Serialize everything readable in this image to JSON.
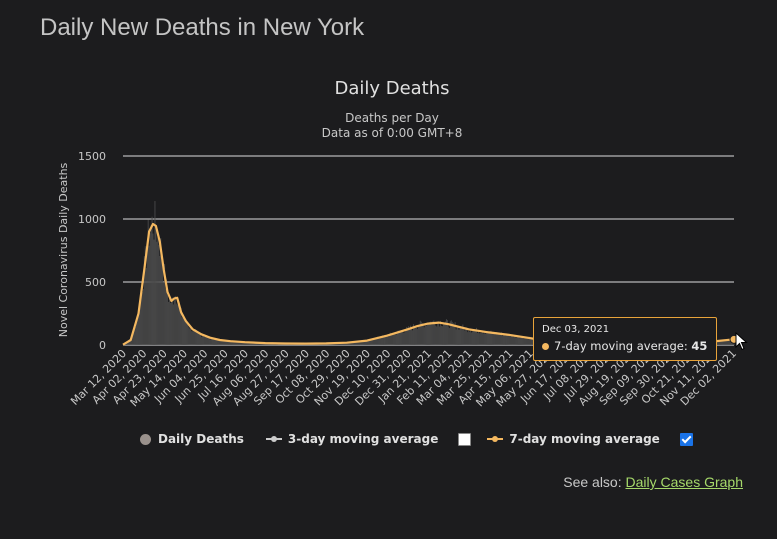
{
  "page": {
    "title": "Daily New Deaths in New York",
    "see_also_label": "See also:",
    "see_also_link": "Daily Cases Graph"
  },
  "legend": {
    "daily_deaths": "Daily Deaths",
    "ma3": "3-day moving average",
    "ma7": "7-day moving average",
    "ma3_checked": false,
    "ma7_checked": true
  },
  "tooltip": {
    "date": "Dec 03, 2021",
    "label": "7-day moving average:",
    "value": "45"
  },
  "colors": {
    "bars": "#4a4a4a",
    "ma7": "#f4b860",
    "ma3": "#cccccc",
    "grid": "#ffffff",
    "link": "#a6d96a",
    "checkbox": "#1a73e8"
  },
  "chart_data": {
    "type": "line",
    "title": "Daily Deaths",
    "subtitle": [
      "Deaths per Day",
      "Data as of 0:00 GMT+8"
    ],
    "ylabel": "Novel Coronavirus Daily Deaths",
    "ylim": [
      0,
      1500
    ],
    "yticks": [
      0,
      500,
      1000,
      1500
    ],
    "grid": true,
    "legend_position": "bottom",
    "x_start": "2020-03-12",
    "x_end": "2021-12-03",
    "xticks": [
      "Mar 12, 2020",
      "Apr 02, 2020",
      "Apr 23, 2020",
      "May 14, 2020",
      "Jun 04, 2020",
      "Jun 25, 2020",
      "Jul 16, 2020",
      "Aug 06, 2020",
      "Aug 27, 2020",
      "Sep 17, 2020",
      "Oct 08, 2020",
      "Oct 29, 2020",
      "Nov 19, 2020",
      "Dec 10, 2020",
      "Dec 31, 2020",
      "Jan 21, 2021",
      "Feb 11, 2021",
      "Mar 04, 2021",
      "Mar 25, 2021",
      "Apr 15, 2021",
      "May 06, 2021",
      "May 27, 2021",
      "Jun 17, 2021",
      "Jul 08, 2021",
      "Jul 29, 2021",
      "Aug 19, 2021",
      "Sep 09, 2021",
      "Sep 30, 2021",
      "Oct 21, 2021",
      "Nov 11, 2021",
      "Dec 02, 2021"
    ],
    "series": [
      {
        "name": "Daily Deaths",
        "style": "bars",
        "points": [
          [
            "2020-03-12",
            2
          ],
          [
            "2020-03-20",
            40
          ],
          [
            "2020-03-28",
            250
          ],
          [
            "2020-04-03",
            600
          ],
          [
            "2020-04-08",
            900
          ],
          [
            "2020-04-12",
            970
          ],
          [
            "2020-04-15",
            950
          ],
          [
            "2020-04-19",
            820
          ],
          [
            "2020-04-23",
            600
          ],
          [
            "2020-04-27",
            400
          ],
          [
            "2020-05-01",
            330
          ],
          [
            "2020-05-04",
            400
          ],
          [
            "2020-05-07",
            390
          ],
          [
            "2020-05-11",
            250
          ],
          [
            "2020-05-16",
            180
          ],
          [
            "2020-05-23",
            120
          ],
          [
            "2020-06-01",
            80
          ],
          [
            "2020-06-10",
            55
          ],
          [
            "2020-06-20",
            38
          ],
          [
            "2020-07-01",
            28
          ],
          [
            "2020-07-16",
            20
          ],
          [
            "2020-08-06",
            14
          ],
          [
            "2020-08-27",
            10
          ],
          [
            "2020-09-17",
            10
          ],
          [
            "2020-10-08",
            13
          ],
          [
            "2020-10-29",
            18
          ],
          [
            "2020-11-19",
            35
          ],
          [
            "2020-12-10",
            75
          ],
          [
            "2020-12-31",
            125
          ],
          [
            "2021-01-10",
            155
          ],
          [
            "2021-01-21",
            180
          ],
          [
            "2021-02-01",
            185
          ],
          [
            "2021-02-11",
            170
          ],
          [
            "2021-03-04",
            125
          ],
          [
            "2021-03-25",
            100
          ],
          [
            "2021-04-15",
            80
          ],
          [
            "2021-05-06",
            55
          ],
          [
            "2021-05-27",
            28
          ],
          [
            "2021-06-17",
            12
          ],
          [
            "2021-07-08",
            7
          ],
          [
            "2021-07-29",
            10
          ],
          [
            "2021-08-19",
            18
          ],
          [
            "2021-09-09",
            28
          ],
          [
            "2021-09-30",
            30
          ],
          [
            "2021-10-21",
            25
          ],
          [
            "2021-11-11",
            28
          ],
          [
            "2021-12-03",
            45
          ]
        ]
      },
      {
        "name": "7-day moving average",
        "style": "line",
        "points": [
          [
            "2020-03-12",
            2
          ],
          [
            "2020-03-20",
            40
          ],
          [
            "2020-03-28",
            250
          ],
          [
            "2020-04-03",
            600
          ],
          [
            "2020-04-08",
            900
          ],
          [
            "2020-04-12",
            960
          ],
          [
            "2020-04-15",
            945
          ],
          [
            "2020-04-19",
            820
          ],
          [
            "2020-04-23",
            600
          ],
          [
            "2020-04-27",
            420
          ],
          [
            "2020-05-01",
            350
          ],
          [
            "2020-05-04",
            370
          ],
          [
            "2020-05-07",
            375
          ],
          [
            "2020-05-11",
            260
          ],
          [
            "2020-05-16",
            190
          ],
          [
            "2020-05-23",
            125
          ],
          [
            "2020-06-01",
            85
          ],
          [
            "2020-06-10",
            58
          ],
          [
            "2020-06-20",
            40
          ],
          [
            "2020-07-01",
            30
          ],
          [
            "2020-07-16",
            22
          ],
          [
            "2020-08-06",
            15
          ],
          [
            "2020-08-27",
            12
          ],
          [
            "2020-09-17",
            11
          ],
          [
            "2020-10-08",
            13
          ],
          [
            "2020-10-29",
            18
          ],
          [
            "2020-11-19",
            35
          ],
          [
            "2020-12-10",
            75
          ],
          [
            "2020-12-31",
            125
          ],
          [
            "2021-01-10",
            150
          ],
          [
            "2021-01-21",
            170
          ],
          [
            "2021-02-01",
            178
          ],
          [
            "2021-02-11",
            165
          ],
          [
            "2021-03-04",
            125
          ],
          [
            "2021-03-25",
            100
          ],
          [
            "2021-04-15",
            80
          ],
          [
            "2021-05-06",
            55
          ],
          [
            "2021-05-27",
            28
          ],
          [
            "2021-06-17",
            12
          ],
          [
            "2021-07-08",
            7
          ],
          [
            "2021-07-29",
            10
          ],
          [
            "2021-08-19",
            18
          ],
          [
            "2021-09-09",
            28
          ],
          [
            "2021-09-30",
            30
          ],
          [
            "2021-10-21",
            25
          ],
          [
            "2021-11-11",
            28
          ],
          [
            "2021-12-03",
            45
          ]
        ]
      }
    ]
  }
}
